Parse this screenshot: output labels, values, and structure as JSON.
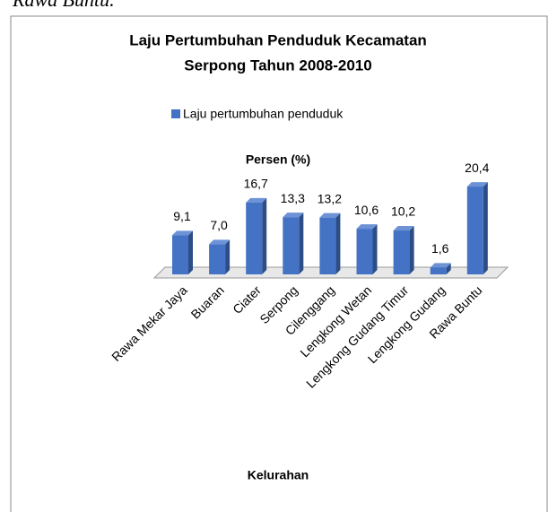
{
  "context_text": "Rawa Buntu.",
  "chart_data": {
    "type": "bar3d",
    "title": "Laju Pertumbuhan Penduduk Kecamatan",
    "subtitle": "Serpong Tahun 2008-2010",
    "y_label": "Persen (%)",
    "x_label": "Kelurahan",
    "categories": [
      "Rawa Mekar Jaya",
      "Buaran",
      "Ciater",
      "Serpong",
      "Cilenggang",
      "Lengkong Wetan",
      "Lengkong Gudang Timur",
      "Lengkong Gudang",
      "Rawa Buntu"
    ],
    "series": [
      {
        "name": "Laju pertumbuhan penduduk",
        "color": "#4472c4",
        "values": [
          9.1,
          7.0,
          16.7,
          13.3,
          13.2,
          10.6,
          10.2,
          1.6,
          20.4
        ],
        "value_labels": [
          "9,1",
          "7,0",
          "16,7",
          "13,3",
          "13,2",
          "10,6",
          "10,2",
          "1,6",
          "20,4"
        ]
      }
    ],
    "legend": "top"
  }
}
